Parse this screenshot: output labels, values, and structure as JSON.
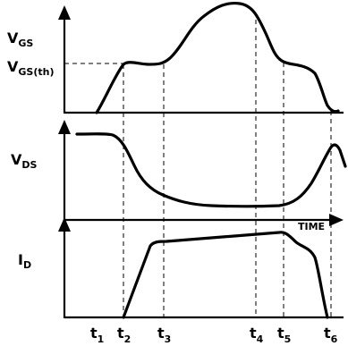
{
  "panels": {
    "vgs": {
      "label_main": "V",
      "label_sub": "GS",
      "threshold_main": "V",
      "threshold_sub": "GS(th)"
    },
    "vds": {
      "label_main": "V",
      "label_sub": "DS"
    },
    "id": {
      "label_main": "I",
      "label_sub": "D",
      "time_label": "TIME"
    }
  },
  "time_marks": [
    {
      "main": "t",
      "sub": "1"
    },
    {
      "main": "t",
      "sub": "2"
    },
    {
      "main": "t",
      "sub": "3"
    },
    {
      "main": "t",
      "sub": "4"
    },
    {
      "main": "t",
      "sub": "5"
    },
    {
      "main": "t",
      "sub": "6"
    }
  ]
}
